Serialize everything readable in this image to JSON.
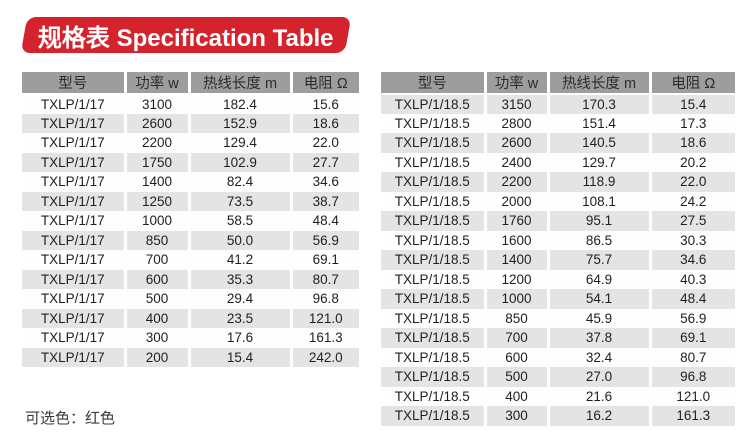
{
  "banner": {
    "title": "规格表 Specification Table",
    "bg_color": "#d5232d",
    "text_color": "#ffffff"
  },
  "chart_data": [
    {
      "type": "table",
      "title": "TXLP/1/17 specifications",
      "columns": [
        "型号",
        "功率 w",
        "热线长度 m",
        "电阻 Ω"
      ],
      "rows": [
        [
          "TXLP/1/17",
          "3100",
          "182.4",
          "15.6"
        ],
        [
          "TXLP/1/17",
          "2600",
          "152.9",
          "18.6"
        ],
        [
          "TXLP/1/17",
          "2200",
          "129.4",
          "22.0"
        ],
        [
          "TXLP/1/17",
          "1750",
          "102.9",
          "27.7"
        ],
        [
          "TXLP/1/17",
          "1400",
          "82.4",
          "34.6"
        ],
        [
          "TXLP/1/17",
          "1250",
          "73.5",
          "38.7"
        ],
        [
          "TXLP/1/17",
          "1000",
          "58.5",
          "48.4"
        ],
        [
          "TXLP/1/17",
          "850",
          "50.0",
          "56.9"
        ],
        [
          "TXLP/1/17",
          "700",
          "41.2",
          "69.1"
        ],
        [
          "TXLP/1/17",
          "600",
          "35.3",
          "80.7"
        ],
        [
          "TXLP/1/17",
          "500",
          "29.4",
          "96.8"
        ],
        [
          "TXLP/1/17",
          "400",
          "23.5",
          "121.0"
        ],
        [
          "TXLP/1/17",
          "300",
          "17.6",
          "161.3"
        ],
        [
          "TXLP/1/17",
          "200",
          "15.4",
          "242.0"
        ]
      ]
    },
    {
      "type": "table",
      "title": "TXLP/1/18.5 specifications",
      "columns": [
        "型号",
        "功率 w",
        "热线长度 m",
        "电阻 Ω"
      ],
      "rows": [
        [
          "TXLP/1/18.5",
          "3150",
          "170.3",
          "15.4"
        ],
        [
          "TXLP/1/18.5",
          "2800",
          "151.4",
          "17.3"
        ],
        [
          "TXLP/1/18.5",
          "2600",
          "140.5",
          "18.6"
        ],
        [
          "TXLP/1/18.5",
          "2400",
          "129.7",
          "20.2"
        ],
        [
          "TXLP/1/18.5",
          "2200",
          "118.9",
          "22.0"
        ],
        [
          "TXLP/1/18.5",
          "2000",
          "108.1",
          "24.2"
        ],
        [
          "TXLP/1/18.5",
          "1760",
          "95.1",
          "27.5"
        ],
        [
          "TXLP/1/18.5",
          "1600",
          "86.5",
          "30.3"
        ],
        [
          "TXLP/1/18.5",
          "1400",
          "75.7",
          "34.6"
        ],
        [
          "TXLP/1/18.5",
          "1200",
          "64.9",
          "40.3"
        ],
        [
          "TXLP/1/18.5",
          "1000",
          "54.1",
          "48.4"
        ],
        [
          "TXLP/1/18.5",
          "850",
          "45.9",
          "56.9"
        ],
        [
          "TXLP/1/18.5",
          "700",
          "37.8",
          "69.1"
        ],
        [
          "TXLP/1/18.5",
          "600",
          "32.4",
          "80.7"
        ],
        [
          "TXLP/1/18.5",
          "500",
          "27.0",
          "96.8"
        ],
        [
          "TXLP/1/18.5",
          "400",
          "21.6",
          "121.0"
        ],
        [
          "TXLP/1/18.5",
          "300",
          "16.2",
          "161.3"
        ]
      ]
    }
  ],
  "footnote": "可选色：红色",
  "colors": {
    "banner_red": "#d5232d",
    "header_bg": "#9d9d9d",
    "row_stripe": "#e4e4e4",
    "row_plain": "#fefefe",
    "table_text": "#1f1f1f"
  }
}
